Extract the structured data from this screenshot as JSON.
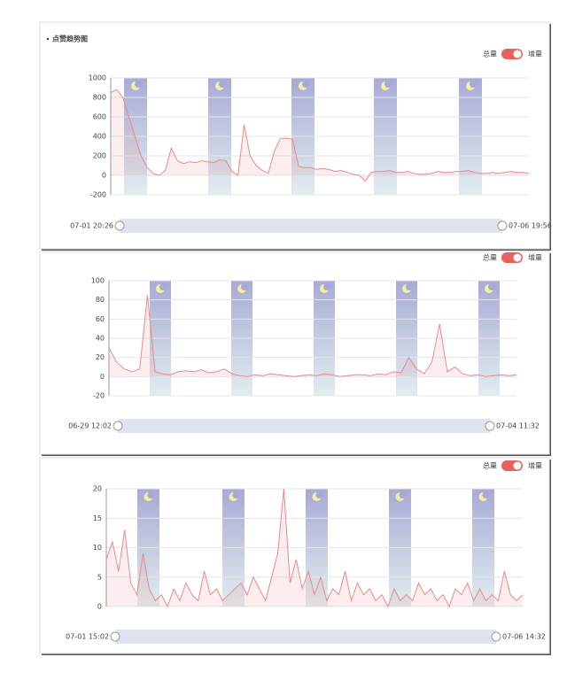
{
  "chart_data": [
    {
      "type": "line",
      "title": "点赞趋势图",
      "toggle_labels": [
        "总量",
        "增量"
      ],
      "color": "#e88a8a",
      "values": [
        850,
        880,
        800,
        600,
        400,
        200,
        80,
        20,
        0,
        50,
        280,
        150,
        120,
        140,
        130,
        150,
        140,
        130,
        160,
        150,
        40,
        0,
        520,
        200,
        100,
        50,
        20,
        250,
        380,
        380,
        370,
        90,
        80,
        80,
        60,
        70,
        60,
        40,
        50,
        30,
        10,
        0,
        -60,
        30,
        40,
        40,
        50,
        30,
        30,
        40,
        20,
        10,
        10,
        20,
        40,
        30,
        30,
        40,
        40,
        50,
        30,
        20,
        20,
        30,
        20,
        30,
        40,
        30,
        30,
        20
      ],
      "ylim": [
        -200,
        1000
      ],
      "yticks": [
        -200,
        0,
        200,
        400,
        600,
        800,
        1000
      ],
      "grid": true,
      "range_start": "07-01 20:26",
      "range_end": "07-06 19:56"
    },
    {
      "type": "line",
      "toggle_labels": [
        "总量",
        "增量"
      ],
      "color": "#e88a8a",
      "values": [
        30,
        15,
        8,
        5,
        8,
        85,
        5,
        3,
        2,
        5,
        6,
        5,
        7,
        4,
        5,
        8,
        3,
        1,
        0,
        2,
        1,
        3,
        2,
        1,
        0,
        1,
        2,
        1,
        3,
        2,
        0,
        1,
        2,
        2,
        1,
        3,
        2,
        5,
        4,
        20,
        8,
        3,
        15,
        55,
        5,
        10,
        3,
        1,
        2,
        0,
        1,
        2,
        1,
        2
      ],
      "ylim": [
        -20,
        100
      ],
      "yticks": [
        -20,
        0,
        20,
        40,
        60,
        80,
        100
      ],
      "grid": true,
      "range_start": "06-29 12:02",
      "range_end": "07-04 11:32"
    },
    {
      "type": "line",
      "toggle_labels": [
        "总量",
        "增量"
      ],
      "color": "#e88a8a",
      "values": [
        8,
        11,
        6,
        13,
        4,
        2,
        9,
        3,
        1,
        2,
        0,
        3,
        1,
        4,
        2,
        1,
        6,
        2,
        3,
        1,
        2,
        3,
        4,
        2,
        5,
        3,
        1,
        5,
        9,
        20,
        4,
        8,
        3,
        6,
        2,
        5,
        1,
        3,
        2,
        6,
        1,
        4,
        2,
        3,
        1,
        2,
        0,
        3,
        1,
        2,
        1,
        4,
        2,
        3,
        1,
        2,
        0,
        3,
        2,
        4,
        1,
        3,
        1,
        2,
        1,
        6,
        2,
        1,
        2
      ],
      "ylim": [
        0,
        20
      ],
      "yticks": [
        0,
        5,
        10,
        15,
        20
      ],
      "grid": true,
      "range_start": "07-01 15:02",
      "range_end": "07-06 14:32"
    }
  ]
}
